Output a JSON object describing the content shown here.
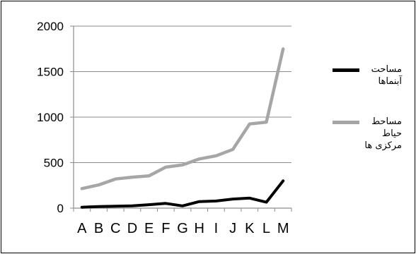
{
  "chart_data": {
    "type": "line",
    "categories": [
      "A",
      "B",
      "C",
      "D",
      "E",
      "F",
      "G",
      "H",
      "I",
      "J",
      "K",
      "L",
      "M"
    ],
    "ylim": [
      0,
      2000
    ],
    "yticks": [
      0,
      500,
      1000,
      1500,
      2000
    ],
    "ytick_labels": [
      "0",
      "500",
      "1000",
      "1500",
      "2000"
    ],
    "grid": true,
    "legend_position": "right",
    "series": [
      {
        "name": "مساحت آبنماها",
        "color": "#000000",
        "values": [
          10,
          18,
          22,
          25,
          38,
          52,
          25,
          72,
          78,
          100,
          110,
          65,
          300
        ]
      },
      {
        "name": "مساحط حیاط مرکزی ها",
        "color": "#a6a6a6",
        "values": [
          215,
          255,
          320,
          340,
          355,
          450,
          475,
          540,
          575,
          645,
          925,
          945,
          1750
        ]
      }
    ]
  }
}
